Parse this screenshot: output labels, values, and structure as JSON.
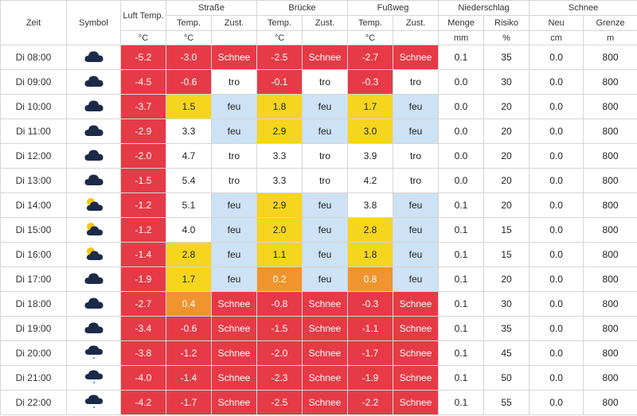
{
  "headers": {
    "zeit": "Zeit",
    "symbol": "Symbol",
    "luft": "Luft Temp.",
    "strasse": "Straße",
    "bruecke": "Brücke",
    "fussweg": "Fußweg",
    "niederschlag": "Niederschlag",
    "schnee": "Schnee",
    "temp": "Temp.",
    "zust": "Zust.",
    "menge": "Menge",
    "risiko": "Risiko",
    "neu": "Neu",
    "grenze": "Grenze",
    "unit_c": "°C",
    "unit_mm": "mm",
    "unit_pct": "%",
    "unit_cm": "cm",
    "unit_m": "m"
  },
  "colors": {
    "red": "#e63a46",
    "yellow": "#f5d51e",
    "orange": "#f0942f",
    "blue": "#cde2f4",
    "icon_cloud": "#1c2a4a",
    "icon_sun": "#f5c518"
  },
  "rows": [
    {
      "zeit": "Di 08:00",
      "icon": "cloud-icon",
      "luft": "-5.2",
      "st": "-3.0",
      "st_c": "red",
      "sz": "Schnee",
      "sz_c": "red",
      "bt": "-2.5",
      "bt_c": "red",
      "bz": "Schnee",
      "bz_c": "red",
      "ft": "-2.7",
      "ft_c": "red",
      "fz": "Schnee",
      "fz_c": "red",
      "menge": "0.1",
      "risiko": "35",
      "neu": "0.0",
      "grenze": "800"
    },
    {
      "zeit": "Di 09:00",
      "icon": "cloud-icon",
      "luft": "-4.5",
      "st": "-0.6",
      "st_c": "red",
      "sz": "tro",
      "sz_c": "white",
      "bt": "-0.1",
      "bt_c": "red",
      "bz": "tro",
      "bz_c": "white",
      "ft": "-0.3",
      "ft_c": "red",
      "fz": "tro",
      "fz_c": "white",
      "menge": "0.0",
      "risiko": "30",
      "neu": "0.0",
      "grenze": "800"
    },
    {
      "zeit": "Di 10:00",
      "icon": "cloud-icon",
      "luft": "-3.7",
      "st": "1.5",
      "st_c": "yellow",
      "sz": "feu",
      "sz_c": "blue",
      "bt": "1.8",
      "bt_c": "yellow",
      "bz": "feu",
      "bz_c": "blue",
      "ft": "1.7",
      "ft_c": "yellow",
      "fz": "feu",
      "fz_c": "blue",
      "menge": "0.0",
      "risiko": "20",
      "neu": "0.0",
      "grenze": "800"
    },
    {
      "zeit": "Di 11:00",
      "icon": "cloud-icon",
      "luft": "-2.9",
      "st": "3.3",
      "st_c": "white",
      "sz": "feu",
      "sz_c": "blue",
      "bt": "2.9",
      "bt_c": "yellow",
      "bz": "feu",
      "bz_c": "blue",
      "ft": "3.0",
      "ft_c": "yellow",
      "fz": "feu",
      "fz_c": "blue",
      "menge": "0.0",
      "risiko": "20",
      "neu": "0.0",
      "grenze": "800"
    },
    {
      "zeit": "Di 12:00",
      "icon": "cloud-icon",
      "luft": "-2.0",
      "st": "4.7",
      "st_c": "white",
      "sz": "tro",
      "sz_c": "white",
      "bt": "3.3",
      "bt_c": "white",
      "bz": "tro",
      "bz_c": "white",
      "ft": "3.9",
      "ft_c": "white",
      "fz": "tro",
      "fz_c": "white",
      "menge": "0.0",
      "risiko": "20",
      "neu": "0.0",
      "grenze": "800"
    },
    {
      "zeit": "Di 13:00",
      "icon": "cloud-icon",
      "luft": "-1.5",
      "st": "5.4",
      "st_c": "white",
      "sz": "tro",
      "sz_c": "white",
      "bt": "3.3",
      "bt_c": "white",
      "bz": "tro",
      "bz_c": "white",
      "ft": "4.2",
      "ft_c": "white",
      "fz": "tro",
      "fz_c": "white",
      "menge": "0.0",
      "risiko": "20",
      "neu": "0.0",
      "grenze": "800"
    },
    {
      "zeit": "Di 14:00",
      "icon": "sun-cloud-icon",
      "luft": "-1.2",
      "st": "5.1",
      "st_c": "white",
      "sz": "feu",
      "sz_c": "blue",
      "bt": "2.9",
      "bt_c": "yellow",
      "bz": "feu",
      "bz_c": "blue",
      "ft": "3.8",
      "ft_c": "white",
      "fz": "feu",
      "fz_c": "blue",
      "menge": "0.1",
      "risiko": "20",
      "neu": "0.0",
      "grenze": "800"
    },
    {
      "zeit": "Di 15:00",
      "icon": "sun-cloud-icon",
      "luft": "-1.2",
      "st": "4.0",
      "st_c": "white",
      "sz": "feu",
      "sz_c": "blue",
      "bt": "2.0",
      "bt_c": "yellow",
      "bz": "feu",
      "bz_c": "blue",
      "ft": "2.8",
      "ft_c": "yellow",
      "fz": "feu",
      "fz_c": "blue",
      "menge": "0.1",
      "risiko": "15",
      "neu": "0.0",
      "grenze": "800"
    },
    {
      "zeit": "Di 16:00",
      "icon": "sun-cloud-icon",
      "luft": "-1.4",
      "st": "2.8",
      "st_c": "yellow",
      "sz": "feu",
      "sz_c": "blue",
      "bt": "1.1",
      "bt_c": "yellow",
      "bz": "feu",
      "bz_c": "blue",
      "ft": "1.8",
      "ft_c": "yellow",
      "fz": "feu",
      "fz_c": "blue",
      "menge": "0.1",
      "risiko": "15",
      "neu": "0.0",
      "grenze": "800"
    },
    {
      "zeit": "Di 17:00",
      "icon": "cloud-icon",
      "luft": "-1.9",
      "st": "1.7",
      "st_c": "yellow",
      "sz": "feu",
      "sz_c": "blue",
      "bt": "0.2",
      "bt_c": "orange",
      "bz": "feu",
      "bz_c": "blue",
      "ft": "0.8",
      "ft_c": "orange",
      "fz": "feu",
      "fz_c": "blue",
      "menge": "0.1",
      "risiko": "20",
      "neu": "0.0",
      "grenze": "800"
    },
    {
      "zeit": "Di 18:00",
      "icon": "cloud-icon",
      "luft": "-2.7",
      "st": "0.4",
      "st_c": "orange",
      "sz": "Schnee",
      "sz_c": "red",
      "bt": "-0.8",
      "bt_c": "red",
      "bz": "Schnee",
      "bz_c": "red",
      "ft": "-0.3",
      "ft_c": "red",
      "fz": "Schnee",
      "fz_c": "red",
      "menge": "0.1",
      "risiko": "30",
      "neu": "0.0",
      "grenze": "800"
    },
    {
      "zeit": "Di 19:00",
      "icon": "cloud-icon",
      "luft": "-3.4",
      "st": "-0.6",
      "st_c": "red",
      "sz": "Schnee",
      "sz_c": "red",
      "bt": "-1.5",
      "bt_c": "red",
      "bz": "Schnee",
      "bz_c": "red",
      "ft": "-1.1",
      "ft_c": "red",
      "fz": "Schnee",
      "fz_c": "red",
      "menge": "0.1",
      "risiko": "35",
      "neu": "0.0",
      "grenze": "800"
    },
    {
      "zeit": "Di 20:00",
      "icon": "cloud-snow-icon",
      "luft": "-3.8",
      "st": "-1.2",
      "st_c": "red",
      "sz": "Schnee",
      "sz_c": "red",
      "bt": "-2.0",
      "bt_c": "red",
      "bz": "Schnee",
      "bz_c": "red",
      "ft": "-1.7",
      "ft_c": "red",
      "fz": "Schnee",
      "fz_c": "red",
      "menge": "0.1",
      "risiko": "45",
      "neu": "0.0",
      "grenze": "800"
    },
    {
      "zeit": "Di 21:00",
      "icon": "cloud-snow-icon",
      "luft": "-4.0",
      "st": "-1.4",
      "st_c": "red",
      "sz": "Schnee",
      "sz_c": "red",
      "bt": "-2.3",
      "bt_c": "red",
      "bz": "Schnee",
      "bz_c": "red",
      "ft": "-1.9",
      "ft_c": "red",
      "fz": "Schnee",
      "fz_c": "red",
      "menge": "0.1",
      "risiko": "50",
      "neu": "0.0",
      "grenze": "800"
    },
    {
      "zeit": "Di 22:00",
      "icon": "cloud-snow-icon",
      "luft": "-4.2",
      "st": "-1.7",
      "st_c": "red",
      "sz": "Schnee",
      "sz_c": "red",
      "bt": "-2.5",
      "bt_c": "red",
      "bz": "Schnee",
      "bz_c": "red",
      "ft": "-2.2",
      "ft_c": "red",
      "fz": "Schnee",
      "fz_c": "red",
      "menge": "0.1",
      "risiko": "55",
      "neu": "0.0",
      "grenze": "800"
    }
  ]
}
